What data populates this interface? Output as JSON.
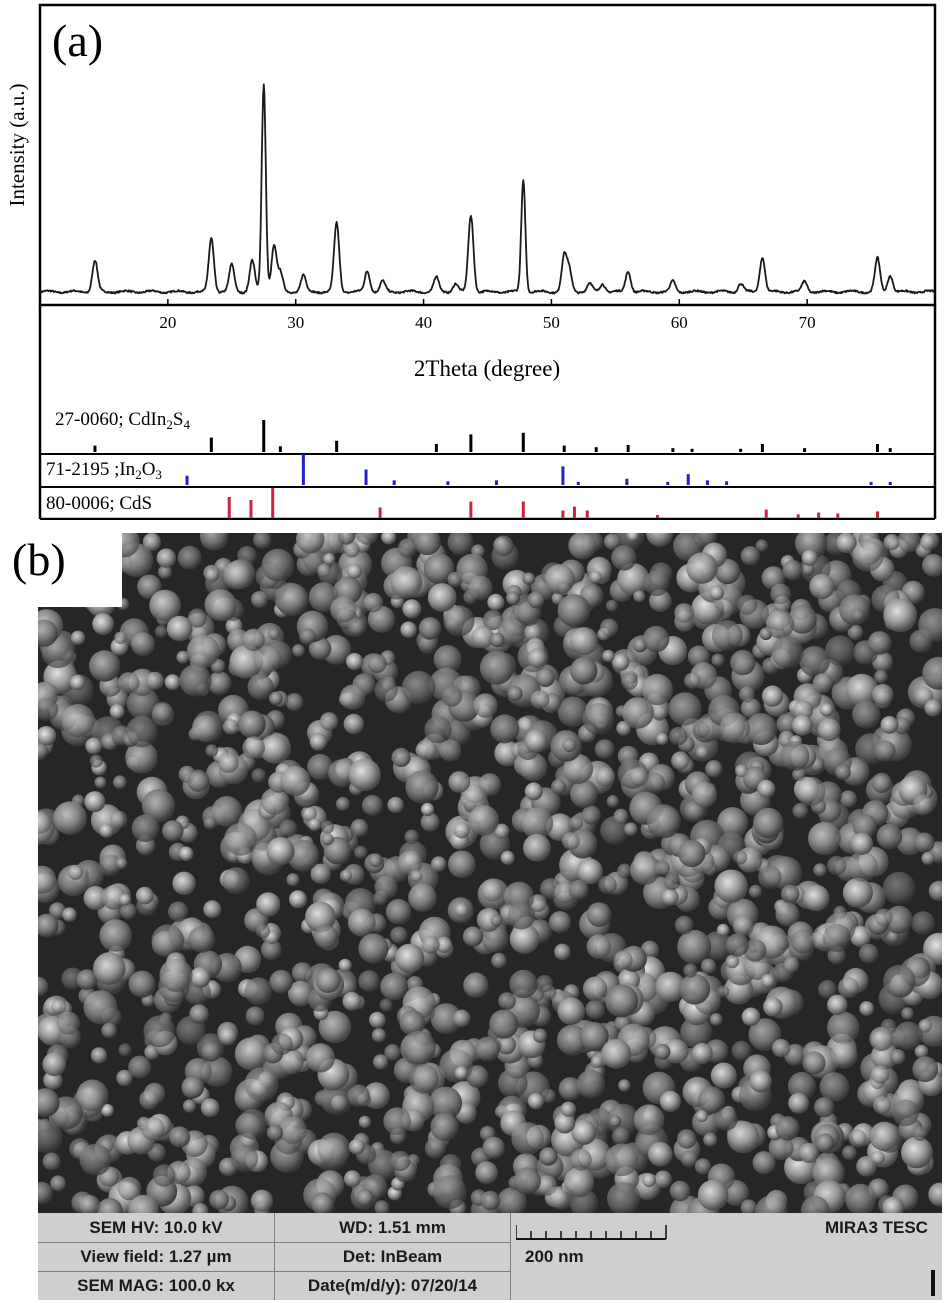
{
  "panel_a": {
    "label": "(a)",
    "chart_data": {
      "type": "line",
      "title": "",
      "xlabel": "2Theta (degree)",
      "ylabel": "Intensity (a.u.)",
      "xlim": [
        10,
        80
      ],
      "ylim": [
        0,
        105
      ],
      "xticks": [
        20,
        30,
        40,
        50,
        60,
        70
      ],
      "baseline": 3,
      "peaks": [
        [
          14.3,
          15
        ],
        [
          23.4,
          26
        ],
        [
          25.0,
          13
        ],
        [
          26.6,
          15
        ],
        [
          27.5,
          100
        ],
        [
          28.3,
          22
        ],
        [
          28.8,
          9
        ],
        [
          30.6,
          8
        ],
        [
          33.2,
          33
        ],
        [
          35.6,
          10
        ],
        [
          36.8,
          5
        ],
        [
          41.0,
          7
        ],
        [
          42.5,
          4
        ],
        [
          43.7,
          37
        ],
        [
          47.8,
          54
        ],
        [
          51.0,
          17
        ],
        [
          51.4,
          10
        ],
        [
          53.0,
          4
        ],
        [
          54.0,
          4
        ],
        [
          56.0,
          10
        ],
        [
          59.5,
          5
        ],
        [
          64.8,
          4
        ],
        [
          66.5,
          17
        ],
        [
          69.8,
          5
        ],
        [
          75.5,
          16
        ],
        [
          76.5,
          8
        ]
      ],
      "references": [
        {
          "label": "27-0060; CdIn",
          "formula_parts": [
            "2",
            "S",
            "4"
          ],
          "color": "#000000",
          "lines": [
            [
              14.3,
              20
            ],
            [
              23.4,
              45
            ],
            [
              27.5,
              100
            ],
            [
              28.8,
              18
            ],
            [
              33.2,
              35
            ],
            [
              41.0,
              25
            ],
            [
              43.7,
              55
            ],
            [
              47.8,
              60
            ],
            [
              51.0,
              20
            ],
            [
              53.5,
              15
            ],
            [
              56.0,
              22
            ],
            [
              59.5,
              12
            ],
            [
              61.0,
              10
            ],
            [
              64.8,
              10
            ],
            [
              66.5,
              25
            ],
            [
              69.8,
              12
            ],
            [
              75.5,
              25
            ],
            [
              76.5,
              12
            ]
          ]
        },
        {
          "label": "71-2195 ;In",
          "formula_parts": [
            "2",
            "O",
            "3"
          ],
          "color": "#2121c4",
          "lines": [
            [
              21.5,
              30
            ],
            [
              30.6,
              100
            ],
            [
              35.5,
              50
            ],
            [
              37.7,
              15
            ],
            [
              41.9,
              12
            ],
            [
              45.7,
              15
            ],
            [
              50.9,
              60
            ],
            [
              52.1,
              10
            ],
            [
              55.9,
              20
            ],
            [
              59.1,
              10
            ],
            [
              60.7,
              35
            ],
            [
              62.2,
              15
            ],
            [
              63.7,
              12
            ],
            [
              75.0,
              10
            ],
            [
              76.5,
              8
            ]
          ]
        },
        {
          "label": "80-0006; CdS",
          "formula_parts": [],
          "color": "#c9243f",
          "lines": [
            [
              24.8,
              70
            ],
            [
              26.5,
              60
            ],
            [
              28.2,
              100
            ],
            [
              36.6,
              35
            ],
            [
              43.7,
              55
            ],
            [
              47.8,
              55
            ],
            [
              50.9,
              25
            ],
            [
              51.8,
              38
            ],
            [
              52.8,
              25
            ],
            [
              58.3,
              10
            ],
            [
              66.8,
              28
            ],
            [
              69.3,
              12
            ],
            [
              70.9,
              18
            ],
            [
              72.4,
              15
            ],
            [
              75.5,
              22
            ]
          ]
        }
      ]
    }
  },
  "panel_b": {
    "label": "(b)",
    "sem_bar": {
      "hv": "SEM HV: 10.0 kV",
      "wd": "WD: 1.51 mm",
      "brand": "MIRA3 TESC",
      "view_field": "View field: 1.27 µm",
      "det": "Det: InBeam",
      "scale": "200 nm",
      "mag": "SEM MAG: 100.0 kx",
      "date": "Date(m/d/y): 07/20/14"
    }
  }
}
